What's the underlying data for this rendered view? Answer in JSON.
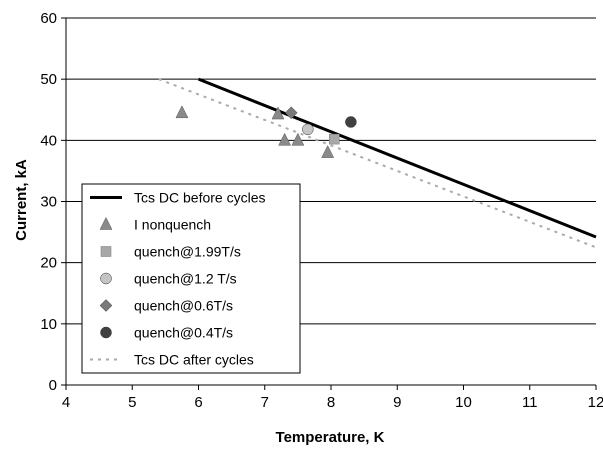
{
  "chart_data": {
    "type": "scatter",
    "title": "",
    "xlabel": "Temperature, K",
    "ylabel": "Current, kA",
    "xlim": [
      4,
      12
    ],
    "ylim": [
      0,
      60
    ],
    "xticks": [
      4,
      5,
      6,
      7,
      8,
      9,
      10,
      11,
      12
    ],
    "yticks": [
      0,
      10,
      20,
      30,
      40,
      50,
      60
    ],
    "grid": "horizontal major gridlines",
    "legend_position": "lower-left",
    "series": [
      {
        "name": "Tcs DC before cycles",
        "kind": "line",
        "style": "solid black",
        "color": "#000000",
        "points": [
          [
            6.0,
            50.0
          ],
          [
            12.0,
            24.2
          ]
        ]
      },
      {
        "name": "I nonquench",
        "kind": "marker",
        "marker": "triangle",
        "color": "#8a8a8a",
        "points": [
          [
            5.75,
            44.5
          ],
          [
            7.2,
            44.3
          ],
          [
            7.3,
            40.0
          ],
          [
            7.5,
            40.0
          ],
          [
            7.95,
            38.0
          ]
        ]
      },
      {
        "name": "quench@1.99T/s",
        "kind": "marker",
        "marker": "square",
        "color": "#a8a8a8",
        "points": [
          [
            8.05,
            40.2
          ]
        ]
      },
      {
        "name": "quench@1.2 T/s",
        "kind": "marker",
        "marker": "circle",
        "color": "#c4c4c4",
        "points": [
          [
            7.65,
            41.8
          ]
        ]
      },
      {
        "name": "quench@0.6T/s",
        "kind": "marker",
        "marker": "diamond",
        "color": "#7a7a7a",
        "points": [
          [
            7.4,
            44.5
          ]
        ]
      },
      {
        "name": "quench@0.4T/s",
        "kind": "marker",
        "marker": "circle",
        "color": "#404040",
        "points": [
          [
            8.3,
            43.0
          ]
        ]
      },
      {
        "name": "Tcs DC after cycles",
        "kind": "line",
        "style": "dotted gray",
        "color": "#aaaaaa",
        "points": [
          [
            5.4,
            50.0
          ],
          [
            12.0,
            22.5
          ]
        ]
      }
    ]
  }
}
